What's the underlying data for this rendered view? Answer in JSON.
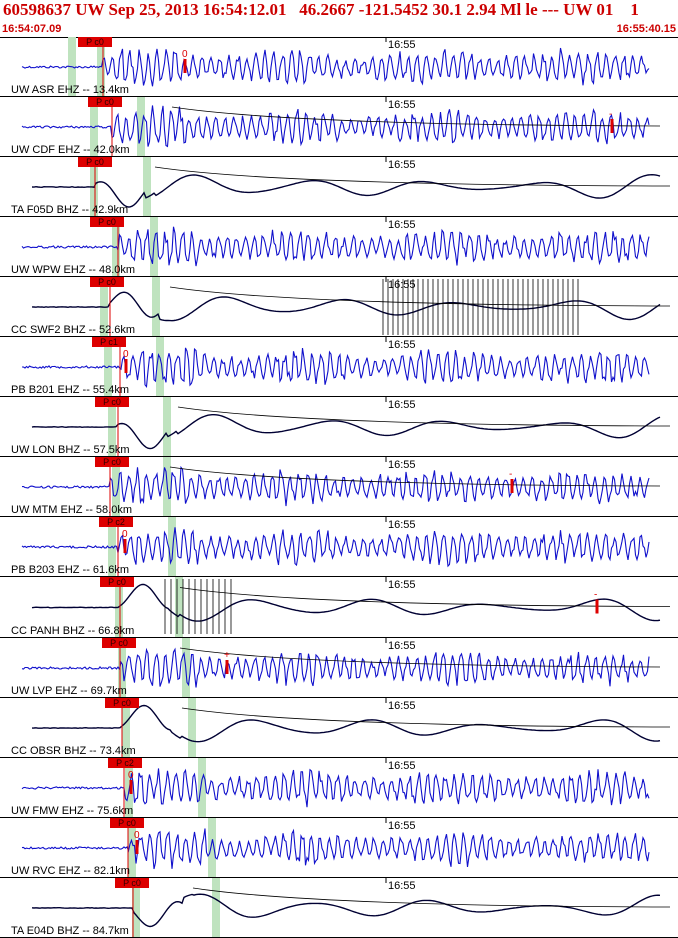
{
  "header": {
    "title": "60598637 UW Sep 25, 2013 16:54:12.01   46.2667 -121.5452 30.1 2.94 Ml le --- UW 01    1",
    "start_time": "16:54:07.09",
    "end_time": "16:55:40.15"
  },
  "colors": {
    "title": "#cc0000",
    "short_period_trace": "#1010cc",
    "broadband_trace": "#000033",
    "pick_marker": "#dd0000",
    "pick_window": "#bfe3bf",
    "envelope": "#000000"
  },
  "chart_data": {
    "type": "line",
    "description_note": "",
    "time_axis": {
      "start": "16:54:07.09",
      "end": "16:55:40.15",
      "minute_tick": "16:55"
    },
    "traces": [
      {
        "label": "UW ASR EHZ -- 13.4km",
        "pick": "P c0",
        "kind": "sp",
        "amp_marker": "0"
      },
      {
        "label": "UW CDF EHZ -- 42.0km",
        "pick": "P c0",
        "kind": "sp",
        "amp_marker": "-"
      },
      {
        "label": "TA F05D BHZ -- 42.9km",
        "pick": "P c0",
        "kind": "bb",
        "amp_marker": ""
      },
      {
        "label": "UW WPW EHZ -- 48.0km",
        "pick": "P c0",
        "kind": "sp",
        "amp_marker": ""
      },
      {
        "label": "CC SWF2 BHZ -- 52.6km",
        "pick": "P c0",
        "kind": "bb",
        "amp_marker": ""
      },
      {
        "label": "PB B201 EHZ -- 55.4km",
        "pick": "P c1",
        "kind": "sp",
        "amp_marker": "0"
      },
      {
        "label": "UW LON BHZ -- 57.5km",
        "pick": "P c0",
        "kind": "bb",
        "amp_marker": ""
      },
      {
        "label": "UW MTM EHZ -- 58.0km",
        "pick": "P c0",
        "kind": "sp",
        "amp_marker": "-"
      },
      {
        "label": "PB B203 EHZ -- 61.6km",
        "pick": "P c2",
        "kind": "sp",
        "amp_marker": "0"
      },
      {
        "label": "CC PANH BHZ -- 66.8km",
        "pick": "P c0",
        "kind": "bb",
        "amp_marker": "-"
      },
      {
        "label": "UW LVP EHZ -- 69.7km",
        "pick": "P c0",
        "kind": "sp",
        "amp_marker": "+"
      },
      {
        "label": "CC OBSR BHZ -- 73.4km",
        "pick": "P c0",
        "kind": "bb",
        "amp_marker": ""
      },
      {
        "label": "UW FMW EHZ -- 75.6km",
        "pick": "P c2",
        "kind": "sp",
        "amp_marker": "0"
      },
      {
        "label": "UW RVC EHZ -- 82.1km",
        "pick": "P c0",
        "kind": "sp",
        "amp_marker": "0"
      },
      {
        "label": "TA E04D BHZ -- 84.7km",
        "pick": "P c0",
        "kind": "bb",
        "amp_marker": ""
      }
    ]
  }
}
